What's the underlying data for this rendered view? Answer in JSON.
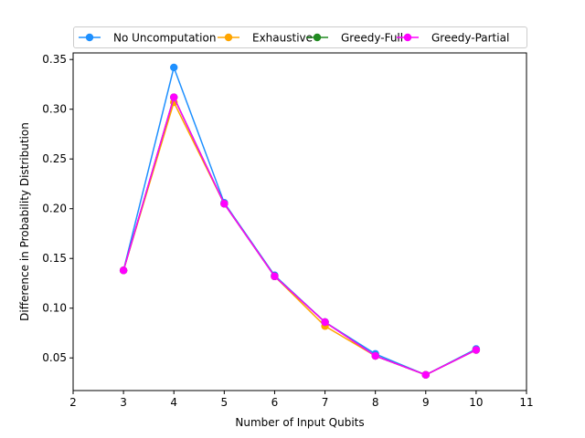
{
  "chart_data": {
    "type": "line",
    "title": "",
    "xlabel": "Number of Input Qubits",
    "ylabel": "Difference in Probability Distribution",
    "xlim": [
      2,
      11
    ],
    "ylim": [
      0.0172,
      0.3566
    ],
    "xticks": [
      2,
      3,
      4,
      5,
      6,
      7,
      8,
      9,
      10,
      11
    ],
    "yticks": [
      0.05,
      0.1,
      0.15,
      0.2,
      0.25,
      0.3,
      0.35
    ],
    "xtick_labels": [
      "2",
      "3",
      "4",
      "5",
      "6",
      "7",
      "8",
      "9",
      "10",
      "11"
    ],
    "ytick_labels": [
      "0.05",
      "0.10",
      "0.15",
      "0.20",
      "0.25",
      "0.30",
      "0.35"
    ],
    "grid": false,
    "legend_position": "top-center",
    "x": [
      3,
      4,
      5,
      6,
      7,
      8,
      9,
      10
    ],
    "series": [
      {
        "name": "No Uncomputation",
        "color": "#1e90ff",
        "marker": "circle",
        "values": [
          0.138,
          0.342,
          0.206,
          0.133,
          0.086,
          0.054,
          0.033,
          0.059
        ]
      },
      {
        "name": "Exhaustive",
        "color": "#ffa500",
        "marker": "circle",
        "values": [
          0.138,
          0.307,
          0.205,
          0.132,
          0.082,
          0.052,
          0.033,
          0.058
        ]
      },
      {
        "name": "Greedy-Full",
        "color": "#228b22",
        "marker": "circle",
        "values": [
          0.138,
          0.312,
          0.205,
          0.132,
          0.086,
          0.052,
          0.033,
          0.058
        ]
      },
      {
        "name": "Greedy-Partial",
        "color": "#ff00ff",
        "marker": "circle",
        "values": [
          0.138,
          0.312,
          0.205,
          0.132,
          0.086,
          0.052,
          0.033,
          0.058
        ]
      }
    ]
  }
}
